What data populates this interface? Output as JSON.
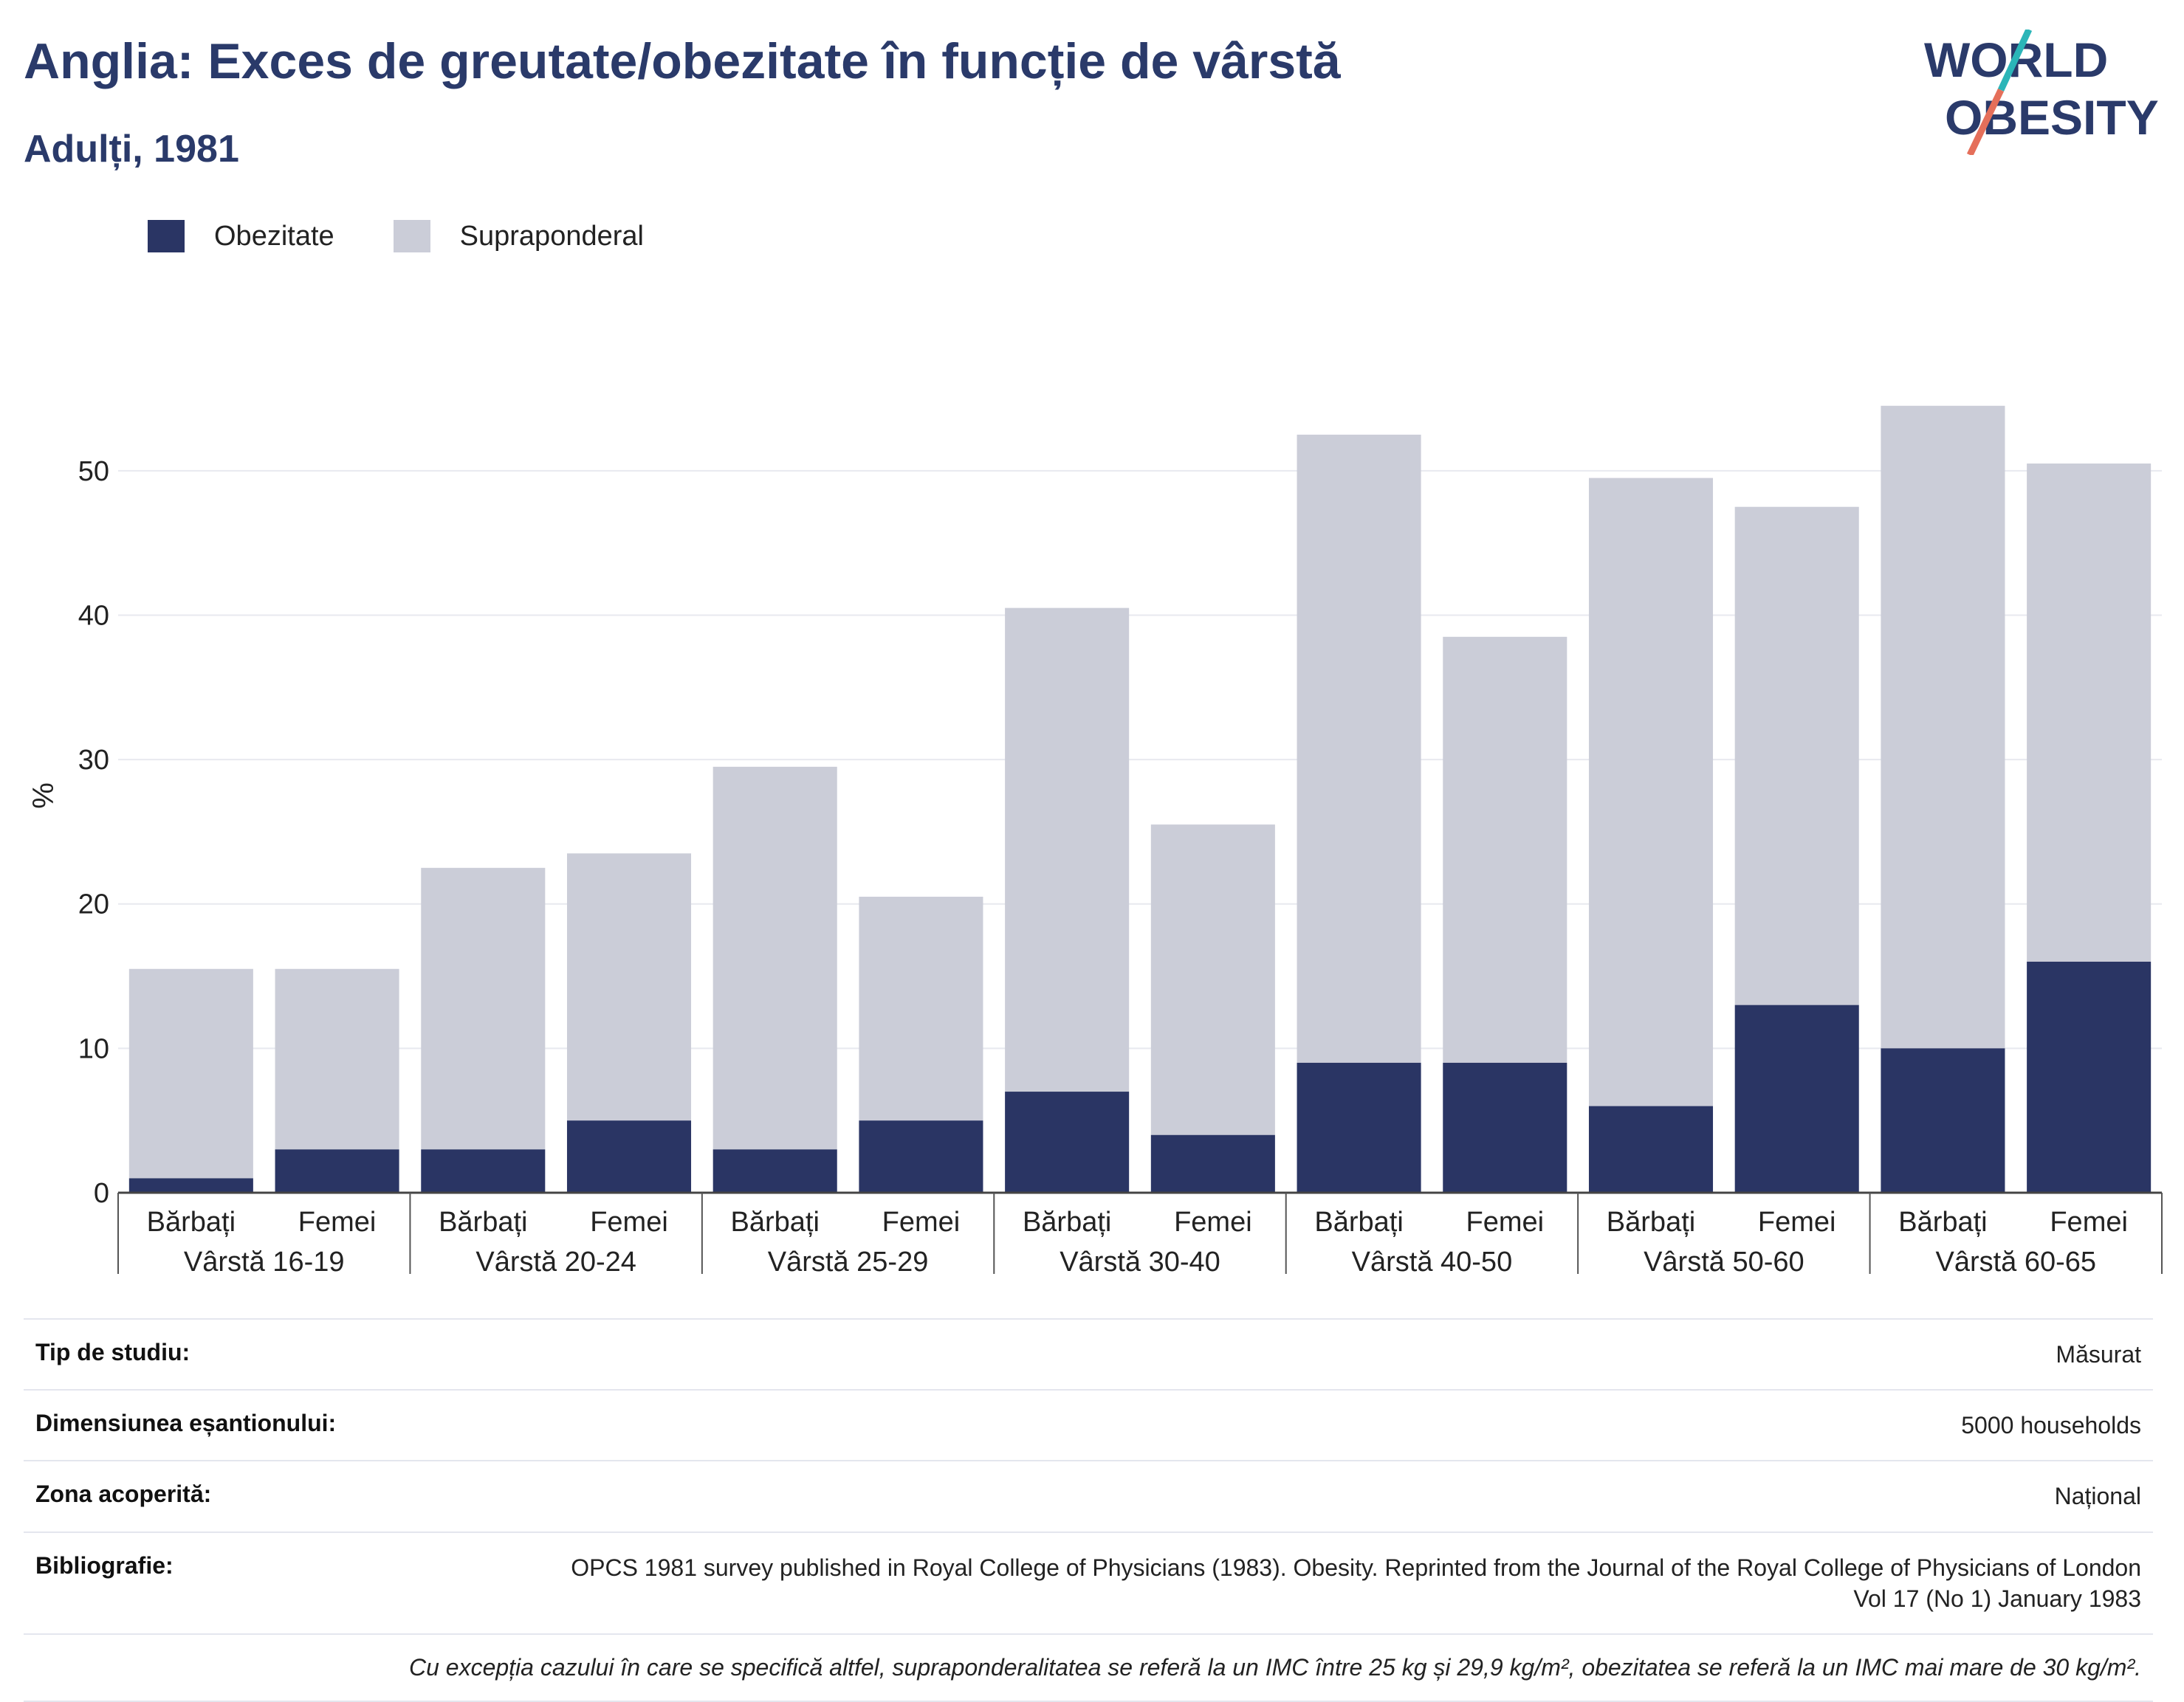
{
  "header": {
    "title": "Anglia: Exces de greutate/obezitate în funcție de vârstă",
    "subtitle": "Adulți, 1981"
  },
  "logo": {
    "line1": "WORLD",
    "line2": "OBESITY"
  },
  "colors": {
    "obesity": "#2a3564",
    "overweight": "#cbcdd8",
    "title": "#2a3a6a",
    "logo_slash_top": "#2bb5b8",
    "logo_slash_bottom": "#e56f5a"
  },
  "chart_data": {
    "type": "bar",
    "stacked": true,
    "title": "",
    "xlabel": "",
    "ylabel": "%",
    "ylim": [
      0,
      55
    ],
    "yticks": [
      0,
      10,
      20,
      30,
      40,
      50
    ],
    "grid": true,
    "legend_placement": "top-left",
    "categories": [
      "Bărbați",
      "Femei",
      "Bărbați",
      "Femei",
      "Bărbați",
      "Femei",
      "Bărbați",
      "Femei",
      "Bărbați",
      "Femei",
      "Bărbați",
      "Femei",
      "Bărbați",
      "Femei"
    ],
    "groups": [
      "Vârstă 16-19",
      "Vârstă 20-24",
      "Vârstă 25-29",
      "Vârstă 30-40",
      "Vârstă 40-50",
      "Vârstă 50-60",
      "Vârstă 60-65"
    ],
    "series": [
      {
        "name": "Obezitate",
        "values": [
          1,
          3,
          3,
          5,
          3,
          5,
          7,
          4,
          9,
          9,
          6,
          13,
          10,
          16
        ]
      },
      {
        "name": "Supraponderal",
        "values": [
          14.5,
          12.5,
          19.5,
          18.5,
          26.5,
          15.5,
          33.5,
          21.5,
          43.5,
          29.5,
          43.5,
          34.5,
          44.5,
          34.5
        ]
      }
    ]
  },
  "meta": [
    {
      "key": "Tip de studiu:",
      "value": "Măsurat"
    },
    {
      "key": "Dimensiunea eșantionului:",
      "value": "5000 households"
    },
    {
      "key": "Zona acoperită:",
      "value": "Național"
    },
    {
      "key": "Bibliografie:",
      "value": "OPCS 1981 survey published in Royal College of Physicians (1983). Obesity. Reprinted from the Journal of the Royal College of Physicians of London Vol 17 (No 1) January 1983"
    }
  ],
  "note": "Cu excepția cazului în care se specifică altfel, supraponderalitatea se referă la un IMC între 25 kg și 29,9 kg/m², obezitatea se referă la un IMC mai mare de 30 kg/m²."
}
